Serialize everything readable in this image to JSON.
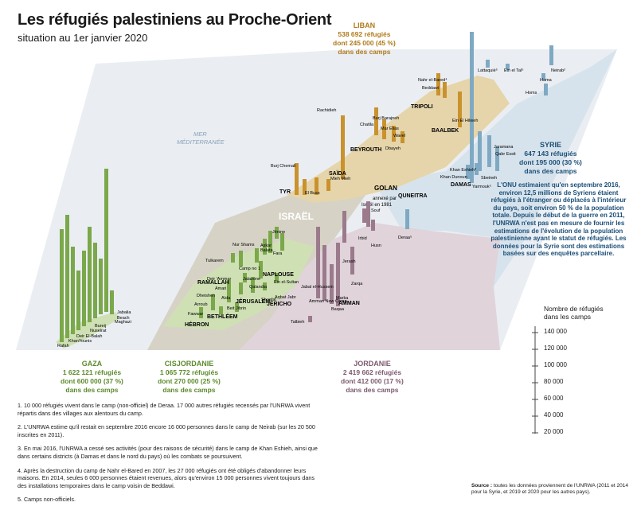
{
  "title": "Les réfugiés palestiniens au Proche-Orient",
  "subtitle": "situation au 1er janvier 2020",
  "colors": {
    "gaza": "#7aa84a",
    "cisjordanie": "#7aa84a",
    "liban": "#c9922d",
    "syrie": "#7fa9c2",
    "jordanie": "#9b7a8c",
    "israel": "#d6d3c6",
    "sea": "#eaeef3"
  },
  "sea_label": [
    "MER",
    "MÉDITERRANÉE"
  ],
  "country_labels": {
    "israel": "ISRAËL",
    "golan": [
      "GOLAN",
      "annexé par",
      "Israël en 1981"
    ]
  },
  "regions": {
    "liban": {
      "name": "LIBAN",
      "lines": [
        "538 692 réfugiés",
        "dont 245 000 (45 %)",
        "dans des camps"
      ]
    },
    "syrie": {
      "name": "SYRIE",
      "lines": [
        "647 143 réfugiés",
        "dont 195 000 (30 %)",
        "dans des camps"
      ]
    },
    "gaza": {
      "name": "GAZA",
      "lines": [
        "1 622 121 réfugiés",
        "dont 600 000 (37 %)",
        "dans des camps"
      ]
    },
    "cisjordanie": {
      "name": "CISJORDANIE",
      "lines": [
        "1 065 772 réfugiés",
        "dont 270 000 (25 %)",
        "dans des camps"
      ]
    },
    "jordanie": {
      "name": "JORDANIE",
      "lines": [
        "2 419 662 réfugiés",
        "dont 412 000 (17 %)",
        "dans des camps"
      ]
    }
  },
  "cities": [
    "TYR",
    "SAÏDA",
    "BEYROUTH",
    "TRIPOLI",
    "BAALBEK",
    "DAMAS",
    "QUNEITRA",
    "NAPLOUSE",
    "RAMALLAH",
    "JÉRUSALEM",
    "JÉRICHO",
    "BETHLÉEM",
    "HÉBRON",
    "AMMAN"
  ],
  "camp_labels": {
    "gaza": [
      "Jabalia",
      "Beach",
      "Maghazi",
      "Bureij",
      "Nuseirat",
      "Deir El-Balah",
      "KhanYounis",
      "Rafah"
    ],
    "cisjordanie": [
      "Jénine",
      "Askar",
      "Balata",
      "Fara",
      "Nur Shams",
      "Tulkarem",
      "Camp no 1",
      "Deir 'Ammar",
      "Jalazone",
      "Amari",
      "Qalandia",
      "Ein el-Sultan",
      "Dheisheh",
      "Aïda",
      "Shuafat",
      "Aqbat Jabr",
      "Arroub",
      "Beit Jibrin",
      "Fawwar"
    ],
    "liban": [
      "Nahr el-Bared⁴",
      "Beddawi",
      "Burj Barajneh",
      "Chatila",
      "Mar Elias",
      "Dbayeh",
      "Wavel",
      "Ein El Hilweh",
      "Rachidieh",
      "Burj Chemali",
      "El Buss",
      "Mieh Mieh"
    ],
    "syrie": [
      "Lattaquié⁵",
      "Ein el Tal⁵",
      "Neirab²",
      "Hama",
      "Homs",
      "Jaramana",
      "Qabr Essit",
      "Khan Eshieh³",
      "Sbeineh",
      "Khan Dunoun",
      "Yarmouk⁵",
      "Deraa⁵"
    ],
    "jordanie": [
      "Souf",
      "Irbid",
      "Husn",
      "Jerash",
      "Zarqa",
      "Jabal el-Hussein",
      "Amman New Camp",
      "Marka",
      "Baqaa",
      "Talbieh"
    ]
  },
  "info_text": "L'ONU estimaient qu'en septembre 2016, environ 12,5 millions de Syriens étaient réfugiés à l'étranger ou déplacés à l'intérieur du pays, soit environ 50 % de la population totale. Depuis le début de la guerre en 2011, l'UNRWA n'est pas en mesure de fournir les estimations de l'évolution de la population palestinienne ayant le statut de réfugiés. Les données pour la Syrie sont des estimations basées sur des enquêtes parcellaire.",
  "scale": {
    "title": [
      "Nombre de réfugiés",
      "dans les camps"
    ],
    "ticks": [
      "140 000",
      "120 000",
      "100 000",
      "80 000",
      "60 000",
      "40 000",
      "20 000"
    ]
  },
  "notes": [
    "1. 10 000 réfugiés vivent dans le camp (non-officiel) de Deraa. 17 000 autres réfugiés recensés par l'UNRWA vivent répartis dans des villages aux alentours du camp.",
    "2. L'UNRWA estime qu'il restait en septembre 2016 encore 16 000 personnes dans le camp de Neirab (sur les 20 500 inscrites en 2011).",
    "3. En mai 2016, l'UNRWA a cessé ses activités (pour des raisons de sécurité) dans le camp de Khan Eshieh, ainsi que dans certains districts (à Damas et dans le nord du pays) où les combats se poursuivent.",
    "4. Après la destruction du camp de Nahr el-Bared en 2007, les 27 000 réfugiés ont été obligés d'abandonner leurs maisons. En 2014, seules 6 000 personnes étaient revenues, alors qu'environ 15 000 personnes vivent toujours dans des installations temporaires dans le camp voisin de Beddawi.",
    "5. Camps non-officiels."
  ],
  "source": {
    "label": "Source :",
    "text": "toutes les données proviennent de l'UNRWA (2011 et 2014 pour la Syrie, et 2019 et 2020 pour les autres pays)."
  }
}
